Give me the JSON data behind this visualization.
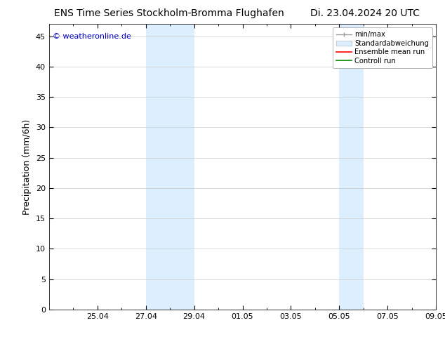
{
  "title_left": "ENS Time Series Stockholm-Bromma Flughafen",
  "title_right": "Di. 23.04.2024 20 UTC",
  "ylabel": "Precipitation (mm/6h)",
  "watermark": "© weatheronline.de",
  "watermark_color": "#0000cc",
  "ylim": [
    0,
    47
  ],
  "yticks": [
    0,
    5,
    10,
    15,
    20,
    25,
    30,
    35,
    40,
    45
  ],
  "x_min": 0,
  "x_max": 16,
  "xtick_labels": [
    "25.04",
    "27.04",
    "29.04",
    "01.05",
    "03.05",
    "05.05",
    "07.05",
    "09.05"
  ],
  "xtick_positions": [
    2,
    4,
    6,
    8,
    10,
    12,
    14,
    16
  ],
  "shaded_bands": [
    {
      "x_start": 4,
      "x_end": 6,
      "color": "#ddeeff"
    },
    {
      "x_start": 12,
      "x_end": 13,
      "color": "#ddeeff"
    }
  ],
  "legend_items": [
    {
      "label": "min/max",
      "color": "#aaaaaa"
    },
    {
      "label": "Standardabweichung",
      "color": "#ddeeff"
    },
    {
      "label": "Ensemble mean run",
      "color": "#ff0000"
    },
    {
      "label": "Controll run",
      "color": "#008800"
    }
  ],
  "bg_color": "#ffffff",
  "plot_bg_color": "#ffffff",
  "grid_color": "#cccccc",
  "title_fontsize": 10,
  "label_fontsize": 9,
  "tick_fontsize": 8
}
